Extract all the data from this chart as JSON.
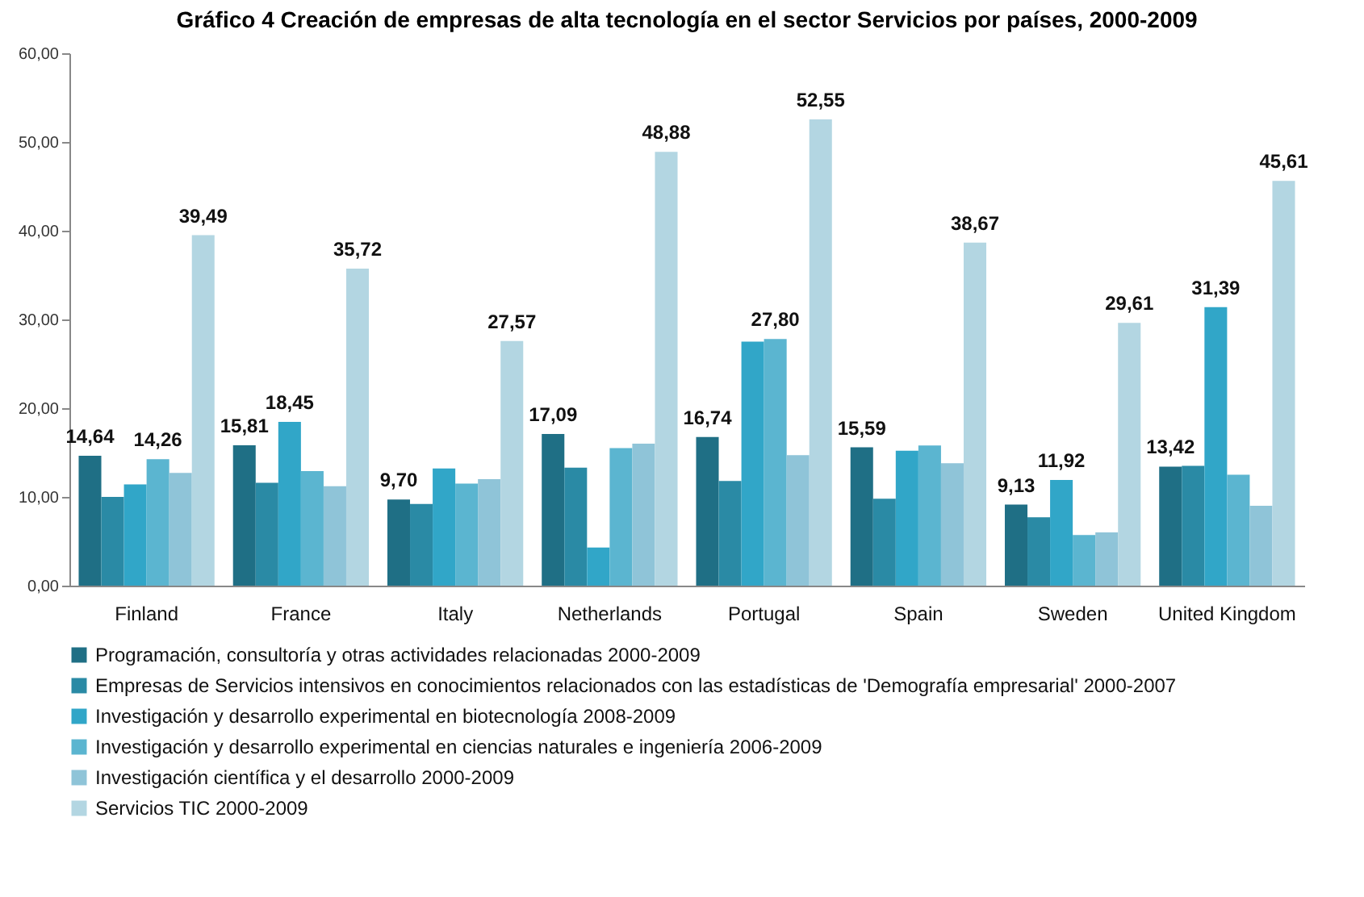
{
  "chart_data": {
    "type": "bar",
    "title": "Gráfico 4 Creación de empresas de alta tecnología en el sector Servicios por países, 2000-2009",
    "categories": [
      "Finland",
      "France",
      "Italy",
      "Netherlands",
      "Portugal",
      "Spain",
      "Sweden",
      "United Kingdom"
    ],
    "series": [
      {
        "name": "Programación, consultoría y otras actividades relacionadas 2000-2009",
        "color": "#1f6f85",
        "values": [
          14.64,
          15.81,
          9.7,
          17.09,
          16.74,
          15.59,
          9.13,
          13.42
        ],
        "value_labels": [
          "14,64",
          "15,81",
          "9,70",
          "17,09",
          "16,74",
          "15,59",
          "9,13",
          "13,42"
        ]
      },
      {
        "name": "Empresas de Servicios intensivos en conocimientos relacionados con las estadísticas de 'Demografía empresarial' 2000-2007",
        "color": "#2a8aa5",
        "values": [
          10.0,
          11.6,
          9.2,
          13.3,
          11.8,
          9.8,
          7.7,
          13.5
        ]
      },
      {
        "name": "Investigación y desarrollo experimental en biotecnología 2008-2009",
        "color": "#31a6c8",
        "values": [
          11.4,
          18.45,
          13.2,
          4.3,
          27.5,
          15.2,
          11.92,
          31.39
        ],
        "value_labels": [
          null,
          "18,45",
          null,
          null,
          null,
          null,
          "11,92",
          "31,39"
        ]
      },
      {
        "name": "Investigación y desarrollo experimental en ciencias naturales e ingeniería 2006-2009",
        "color": "#5bb5d0",
        "values": [
          14.26,
          12.9,
          11.5,
          15.5,
          27.8,
          15.8,
          5.7,
          12.5
        ],
        "value_labels": [
          "14,26",
          null,
          null,
          null,
          "27,80",
          null,
          null,
          null
        ]
      },
      {
        "name": "Investigación científica y el desarrollo 2000-2009",
        "color": "#8fc4d8",
        "values": [
          12.7,
          11.2,
          12.0,
          16.0,
          14.7,
          13.8,
          6.0,
          9.0
        ]
      },
      {
        "name": "Servicios TIC 2000-2009",
        "color": "#b3d6e2",
        "values": [
          39.49,
          35.72,
          27.57,
          48.88,
          52.55,
          38.67,
          29.61,
          45.61
        ],
        "value_labels": [
          "39,49",
          "35,72",
          "27,57",
          "48,88",
          "52,55",
          "38,67",
          "29,61",
          "45,61"
        ]
      }
    ],
    "ylim": [
      0,
      60
    ],
    "yticks": [
      {
        "value": 0,
        "label": "0,00"
      },
      {
        "value": 10,
        "label": "10,00"
      },
      {
        "value": 20,
        "label": "20,00"
      },
      {
        "value": 30,
        "label": "30,00"
      },
      {
        "value": 40,
        "label": "40,00"
      },
      {
        "value": 50,
        "label": "50,00"
      },
      {
        "value": 60,
        "label": "60,00"
      }
    ],
    "grid": false,
    "legend": "bottom"
  }
}
